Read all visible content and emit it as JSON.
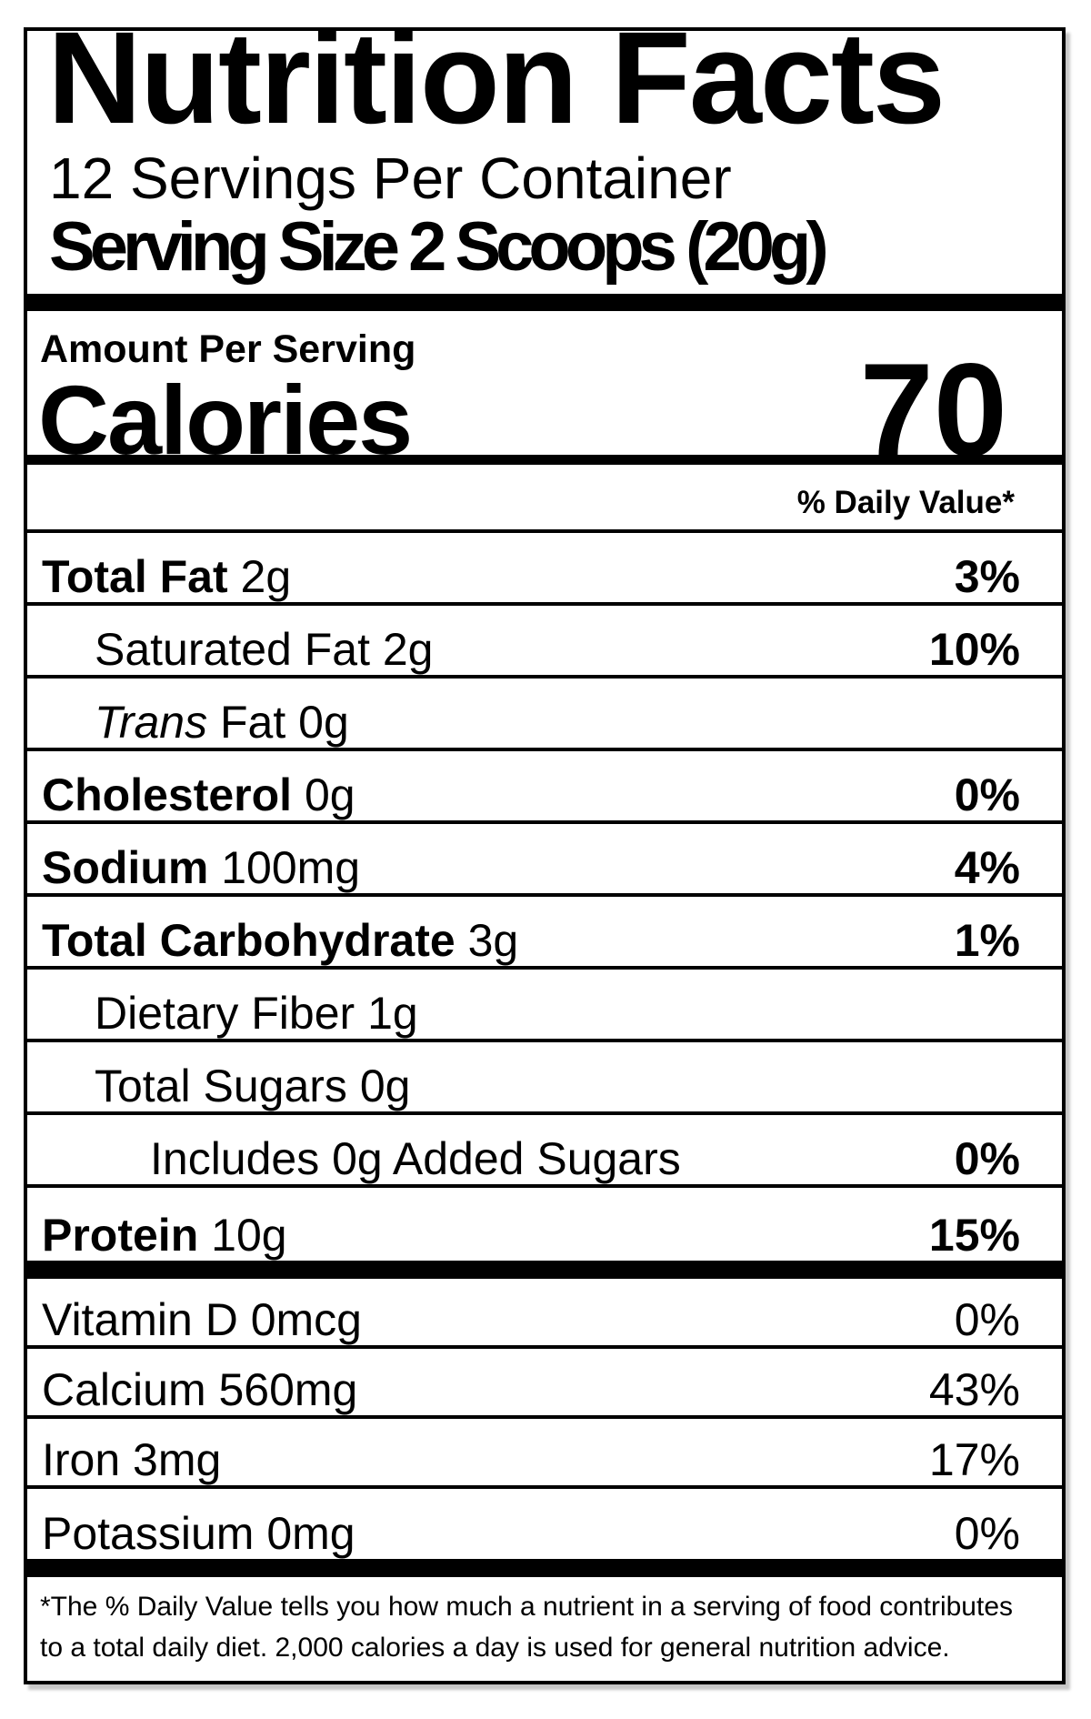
{
  "label": {
    "title": "Nutrition Facts",
    "servings_per_container": "12 Servings Per Container",
    "serving_size": "Serving Size 2 Scoops (20g)",
    "amount_per_serving": "Amount Per Serving",
    "calories_word": "Calories",
    "calories_value": "70",
    "daily_value_header": "% Daily Value*",
    "nutrients": [
      {
        "name": "Total Fat",
        "amount": "2g",
        "dv": "3%",
        "bold_name": true,
        "bold_dv": true,
        "indent": 0
      },
      {
        "name": "Saturated Fat",
        "amount": "2g",
        "dv": "10%",
        "bold_name": false,
        "bold_dv": true,
        "indent": 1
      },
      {
        "name": "Trans",
        "amount": "Fat 0g",
        "dv": "",
        "bold_name": false,
        "italic_name": true,
        "indent": 1
      },
      {
        "name": "Cholesterol",
        "amount": "0g",
        "dv": "0%",
        "bold_name": true,
        "bold_dv": true,
        "indent": 0
      },
      {
        "name": "Sodium",
        "amount": "100mg",
        "dv": "4%",
        "bold_name": true,
        "bold_dv": true,
        "indent": 0
      },
      {
        "name": "Total Carbohydrate",
        "amount": "3g",
        "dv": "1%",
        "bold_name": true,
        "bold_dv": true,
        "indent": 0
      },
      {
        "name": "Dietary Fiber",
        "amount": "1g",
        "dv": "",
        "bold_name": false,
        "indent": 1
      },
      {
        "name": "Total Sugars",
        "amount": "0g",
        "dv": "",
        "bold_name": false,
        "indent": 1
      },
      {
        "name": "Includes 0g Added Sugars",
        "amount": "",
        "dv": "0%",
        "bold_name": false,
        "bold_dv": true,
        "indent": 2
      },
      {
        "name": "Protein",
        "amount": "10g",
        "dv": "15%",
        "bold_name": true,
        "bold_dv": true,
        "indent": 0,
        "last": true
      }
    ],
    "micronutrients": [
      {
        "name": "Vitamin D 0mcg",
        "dv": "0%"
      },
      {
        "name": "Calcium 560mg",
        "dv": "43%"
      },
      {
        "name": "Iron 3mg",
        "dv": "17%"
      },
      {
        "name": "Potassium 0mg",
        "dv": "0%",
        "last": true
      }
    ],
    "footnote_line1": "*The % Daily Value tells you how much a nutrient in a serving of food contributes",
    "footnote_line2": "to a total daily diet.  2,000 calories a day is used for general nutrition advice.",
    "colors": {
      "ink": "#000000",
      "background": "#ffffff"
    }
  }
}
